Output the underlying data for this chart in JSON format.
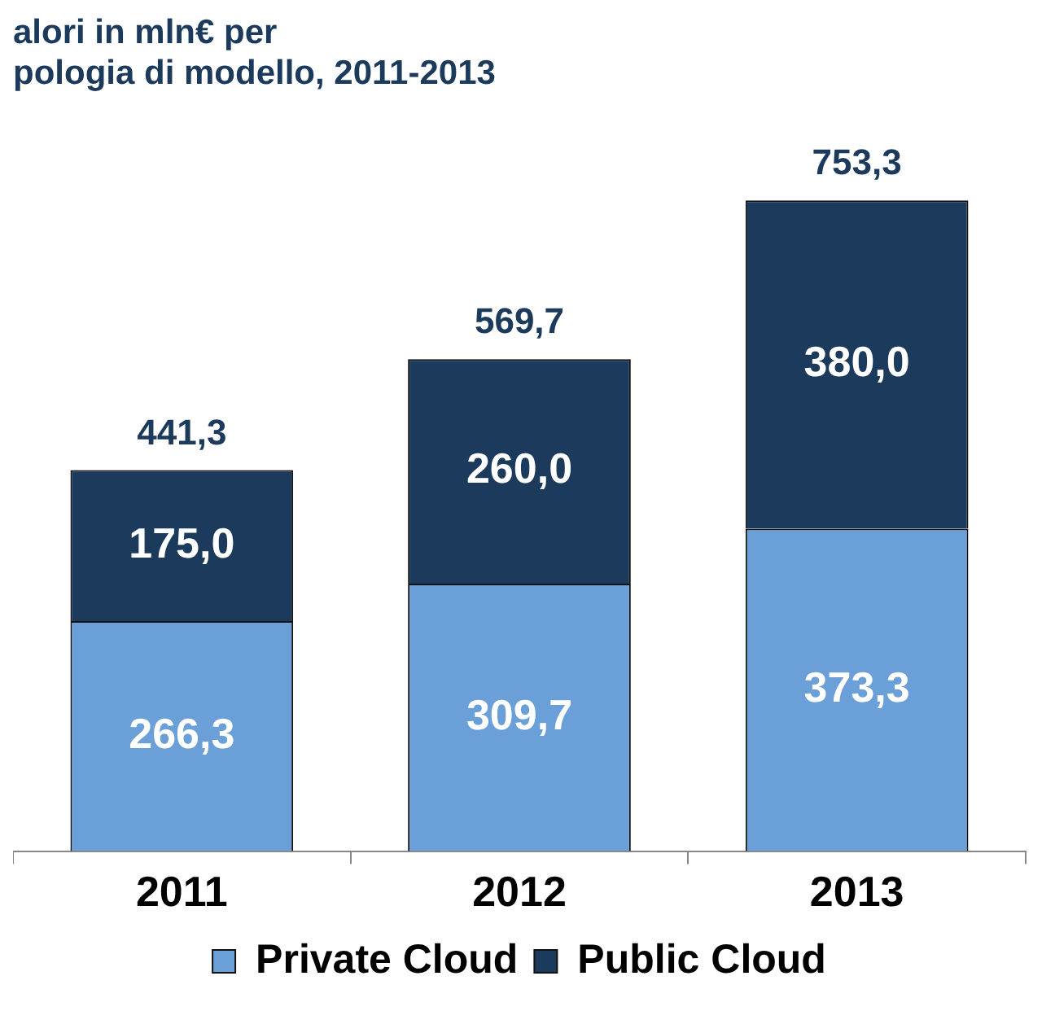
{
  "chart_data": {
    "type": "bar",
    "title": "alori in mln€ per\npologia di modello, 2011-2013",
    "categories": [
      "2011",
      "2012",
      "2013"
    ],
    "stacked": true,
    "tick_labels": "x",
    "legend": "bottom",
    "series": [
      {
        "name": "Private Cloud",
        "color": "#6a9fd8",
        "values": [
          266.3,
          309.7,
          373.3
        ],
        "value_labels": [
          "266,3",
          "309,7",
          "373,3"
        ]
      },
      {
        "name": "Public Cloud",
        "color": "#1c3a5c",
        "values": [
          175.0,
          260.0,
          380.0
        ],
        "value_labels": [
          "175,0",
          "260,0",
          "380,0"
        ]
      }
    ],
    "totals": [
      "441,3",
      "569,7",
      "753,3"
    ]
  }
}
